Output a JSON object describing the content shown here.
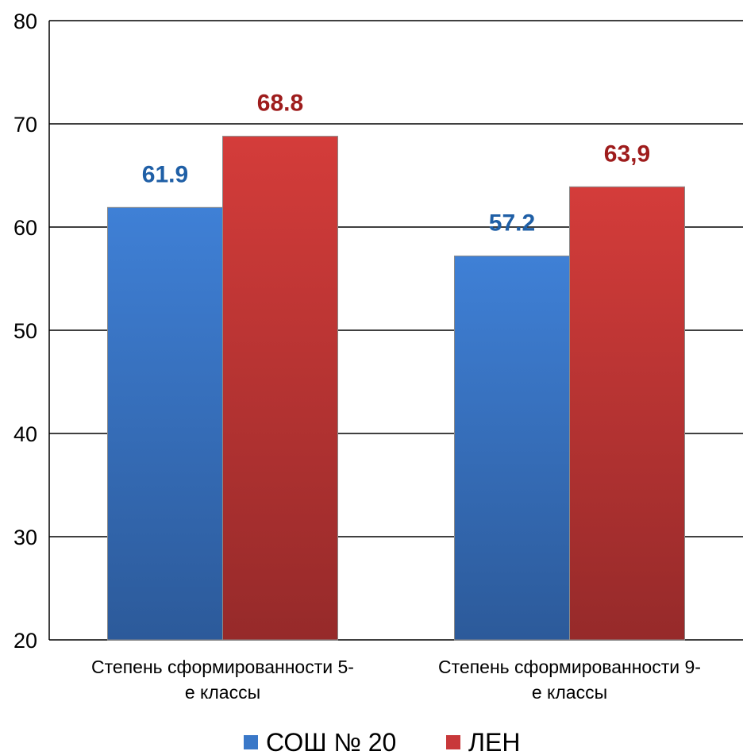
{
  "chart_data": {
    "type": "bar",
    "categories": [
      [
        "Степень сформированности 5-",
        "е классы"
      ],
      [
        "Степень сформированности 9-",
        "е классы"
      ]
    ],
    "series": [
      {
        "name": "СОШ № 20",
        "values": [
          61.9,
          57.2
        ],
        "labels": [
          "61.9",
          "57.2"
        ],
        "color": "#3a78c8",
        "label_color": "#1f5fa6"
      },
      {
        "name": "ЛЕН",
        "values": [
          68.8,
          63.9
        ],
        "labels": [
          "68.8",
          "63,9"
        ],
        "color": "#c8383a",
        "label_color": "#9e1c1c"
      }
    ],
    "yticks": [
      "20",
      "30",
      "40",
      "50",
      "60",
      "70",
      "80"
    ],
    "ylim": [
      20,
      80
    ],
    "grid": true,
    "legend": "bottom"
  }
}
